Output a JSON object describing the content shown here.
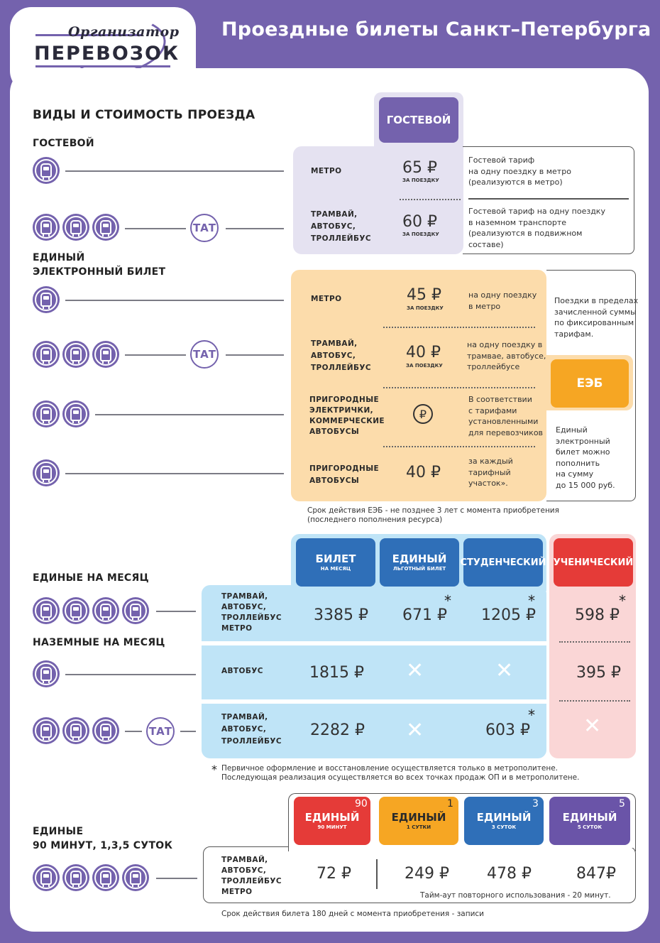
{
  "header": {
    "logo_top": "Организатор",
    "logo_bottom": "ПЕРЕВОЗОК",
    "title": "Проездные билеты Санкт–Петербурга"
  },
  "section_main": "ВИДЫ И СТОИМОСТЬ ПРОЕЗДА",
  "guest": {
    "heading": "ГОСТЕВОЙ",
    "column_label": "ГОСТЕВОЙ",
    "rows": [
      {
        "label": "МЕТРО",
        "price": "65 ₽",
        "sub": "ЗА ПОЕЗДКУ",
        "note": [
          "Гостевой тариф",
          "на одну поездку в метро",
          "(реализуются в метро)"
        ]
      },
      {
        "label": [
          "ТРАМВАЙ,",
          "АВТОБУС,",
          "ТРОЛЛЕЙБУС"
        ],
        "price": "60 ₽",
        "sub": "ЗА ПОЕЗДКУ",
        "note": [
          "Гостевой тариф на одну поездку",
          "в наземном транспорте",
          "(реализуются в подвижном",
          "составе)"
        ]
      }
    ]
  },
  "eeb": {
    "heading": [
      "ЕДИНЫЙ",
      "ЭЛЕКТРОННЫЙ БИЛЕТ"
    ],
    "badge": "ЕЭБ",
    "rows": [
      {
        "label": [
          "МЕТРО"
        ],
        "price": "45 ₽",
        "sub": "ЗА ПОЕЗДКУ",
        "note": [
          "на одну поездку",
          "в метро"
        ]
      },
      {
        "label": [
          "ТРАМВАЙ,",
          "АВТОБУС,",
          "ТРОЛЛЕЙБУС"
        ],
        "price": "40 ₽",
        "sub": "ЗА ПОЕЗДКУ",
        "note": [
          "на одну поездку в",
          "трамвае, автобусе,",
          "троллейбусе"
        ]
      },
      {
        "label": [
          "ПРИГОРОДНЫЕ",
          "ЭЛЕКТРИЧКИ,",
          "КОММЕРЧЕСКИЕ",
          "АВТОБУСЫ"
        ],
        "price": "₽",
        "sub": "",
        "note": [
          "В соответствии",
          "с тарифами",
          "установленными",
          "для перевозчиков"
        ]
      },
      {
        "label": [
          "ПРИГОРОДНЫЕ",
          "АВТОБУСЫ"
        ],
        "price": "40 ₽",
        "sub": "",
        "note": [
          "за каждый",
          "тарифный",
          "участок»."
        ]
      }
    ],
    "side_top": [
      "Поездки в пределах",
      "зачисленной суммы",
      "по фиксированным",
      "тарифам."
    ],
    "side_bottom": [
      "Единый",
      "электронный",
      "билет можно",
      "пополнить",
      "на сумму",
      "до 15 000 руб."
    ],
    "validity": [
      "Срок действия ЕЭБ - не позднее 3 лет с момента приобретения",
      "(последнего пополнения ресурса)"
    ]
  },
  "monthly": {
    "heading_all": "ЕДИНЫЕ НА МЕСЯЦ",
    "heading_ground": "НАЗЕМНЫЕ НА МЕСЯЦ",
    "columns": [
      {
        "big": "БИЛЕТ",
        "tiny": "НА МЕСЯЦ",
        "color": "#2f6fb8"
      },
      {
        "big": "ЕДИНЫЙ",
        "tiny": "ЛЬГОТНЫЙ БИЛЕТ",
        "color": "#2f6fb8"
      },
      {
        "big": "СТУДЕНЧЕСКИЙ",
        "tiny": "",
        "color": "#2f6fb8"
      },
      {
        "big": "УЧЕНИЧЕСКИЙ",
        "tiny": "",
        "color": "#e53b38"
      }
    ],
    "rows": [
      {
        "label": [
          "ТРАМВАЙ,",
          "АВТОБУС,",
          "ТРОЛЛЕЙБУС",
          "МЕТРО"
        ],
        "values": [
          "3385 ₽",
          "671 ₽",
          "1205 ₽",
          "598 ₽"
        ]
      },
      {
        "label": [
          "АВТОБУС"
        ],
        "values": [
          "1815 ₽",
          "✕",
          "✕",
          "395 ₽"
        ]
      },
      {
        "label": [
          "ТРАМВАЙ,",
          "АВТОБУС,",
          "ТРОЛЛЕЙБУС"
        ],
        "values": [
          "2282 ₽",
          "✕",
          "603 ₽",
          "✕"
        ]
      }
    ],
    "star": "*",
    "footnote": [
      "Первичное оформление и восстановление осуществляется только в метрополитене.",
      "Последующая реализация осуществляется во всех точках продаж ОП и в метрополитене."
    ]
  },
  "daily": {
    "heading": [
      "ЕДИНЫЕ",
      "90 МИНУТ, 1,3,5 СУТОК"
    ],
    "columns": [
      {
        "big": "ЕДИНЫЙ",
        "tiny": "90 МИНУТ",
        "num": "90",
        "color": "#e53b38"
      },
      {
        "big": "ЕДИНЫЙ",
        "tiny": "1 СУТКИ",
        "num": "1",
        "color": "#f6a623"
      },
      {
        "big": "ЕДИНЫЙ",
        "tiny": "3 СУТОК",
        "num": "3",
        "color": "#2f6fb8"
      },
      {
        "big": "ЕДИНЫЙ",
        "tiny": "5 СУТОК",
        "num": "5",
        "color": "#6a54a8"
      }
    ],
    "label": [
      "ТРАМВАЙ,",
      "АВТОБУС,",
      "ТРОЛЛЕЙБУС",
      "МЕТРО"
    ],
    "values": [
      "72 ₽",
      "249 ₽",
      "478 ₽",
      "847₽"
    ],
    "timeout": "Тайм-аут повторного использования - 20 минут.",
    "validity": "Срок действия билета 180 дней с момента приобретения - записи"
  },
  "tat": "ТАТ"
}
